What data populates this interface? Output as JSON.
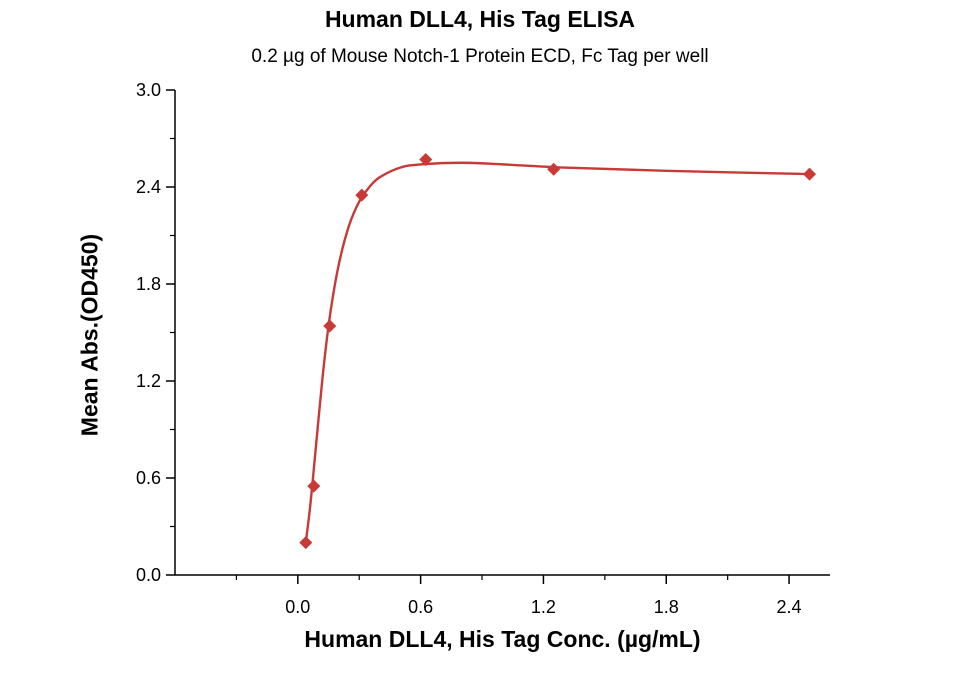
{
  "chart_data": {
    "type": "scatter",
    "title": "Human DLL4, His Tag ELISA",
    "subtitle": "0.2 µg of Mouse Notch-1 Protein ECD, Fc Tag per well",
    "xlabel": "Human DLL4, His Tag Conc. (µg/mL)",
    "ylabel": "Mean Abs.(OD450)",
    "xlim": [
      -0.6,
      2.6
    ],
    "ylim": [
      0,
      3.0
    ],
    "x_ticks": [
      "0.0",
      "0.6",
      "1.2",
      "1.8",
      "2.4"
    ],
    "y_ticks": [
      "0.0",
      "0.6",
      "1.2",
      "1.8",
      "2.4",
      "3.0"
    ],
    "grid": false,
    "legend": "none",
    "series": [
      {
        "marker": "diamond",
        "color": "#c83a37",
        "points": [
          {
            "x": 0.039,
            "y": 0.2
          },
          {
            "x": 0.078,
            "y": 0.55
          },
          {
            "x": 0.156,
            "y": 1.54
          },
          {
            "x": 0.3125,
            "y": 2.35
          },
          {
            "x": 0.625,
            "y": 2.57
          },
          {
            "x": 1.25,
            "y": 2.51
          },
          {
            "x": 2.5,
            "y": 2.48
          }
        ]
      }
    ],
    "fit_curve": {
      "color": "#c83a37",
      "points": [
        {
          "x": 0.039,
          "y": 0.2
        },
        {
          "x": 0.06,
          "y": 0.42
        },
        {
          "x": 0.08,
          "y": 0.68
        },
        {
          "x": 0.1,
          "y": 0.95
        },
        {
          "x": 0.13,
          "y": 1.33
        },
        {
          "x": 0.16,
          "y": 1.63
        },
        {
          "x": 0.2,
          "y": 1.92
        },
        {
          "x": 0.25,
          "y": 2.16
        },
        {
          "x": 0.3,
          "y": 2.31
        },
        {
          "x": 0.35,
          "y": 2.4
        },
        {
          "x": 0.4,
          "y": 2.46
        },
        {
          "x": 0.5,
          "y": 2.52
        },
        {
          "x": 0.6,
          "y": 2.54
        },
        {
          "x": 0.8,
          "y": 2.55
        },
        {
          "x": 1.0,
          "y": 2.54
        },
        {
          "x": 1.3,
          "y": 2.52
        },
        {
          "x": 1.8,
          "y": 2.5
        },
        {
          "x": 2.5,
          "y": 2.48
        }
      ]
    }
  }
}
